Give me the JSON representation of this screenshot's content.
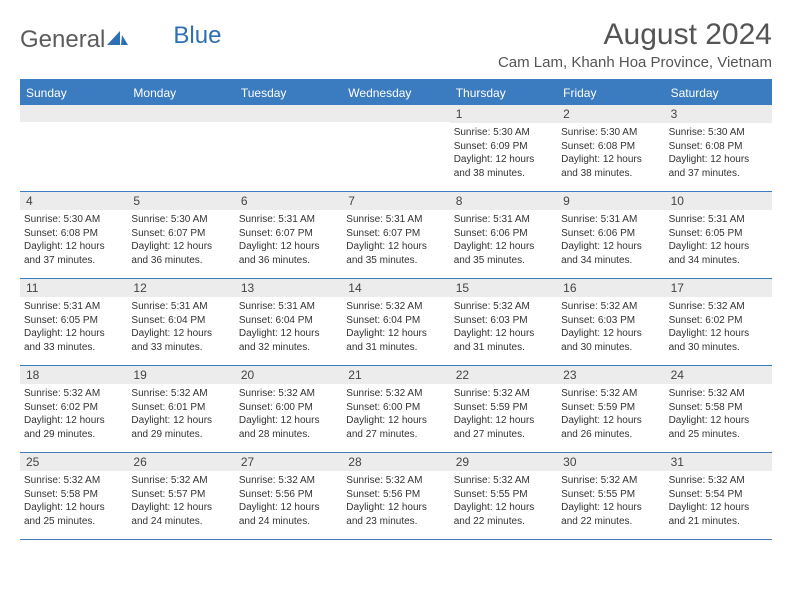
{
  "logo": {
    "text1": "General",
    "text2": "Blue"
  },
  "title": "August 2024",
  "location": "Cam Lam, Khanh Hoa Province, Vietnam",
  "colors": {
    "header_bg": "#3b7bbf",
    "header_text": "#ffffff",
    "daynum_bg": "#ececec",
    "text": "#333333",
    "title_text": "#555555",
    "logo_gray": "#5c5c5c",
    "logo_blue": "#2e6fb5"
  },
  "day_names": [
    "Sunday",
    "Monday",
    "Tuesday",
    "Wednesday",
    "Thursday",
    "Friday",
    "Saturday"
  ],
  "weeks": [
    [
      {
        "empty": true
      },
      {
        "empty": true
      },
      {
        "empty": true
      },
      {
        "empty": true
      },
      {
        "n": "1",
        "sr": "Sunrise: 5:30 AM",
        "ss": "Sunset: 6:09 PM",
        "dl": "Daylight: 12 hours and 38 minutes."
      },
      {
        "n": "2",
        "sr": "Sunrise: 5:30 AM",
        "ss": "Sunset: 6:08 PM",
        "dl": "Daylight: 12 hours and 38 minutes."
      },
      {
        "n": "3",
        "sr": "Sunrise: 5:30 AM",
        "ss": "Sunset: 6:08 PM",
        "dl": "Daylight: 12 hours and 37 minutes."
      }
    ],
    [
      {
        "n": "4",
        "sr": "Sunrise: 5:30 AM",
        "ss": "Sunset: 6:08 PM",
        "dl": "Daylight: 12 hours and 37 minutes."
      },
      {
        "n": "5",
        "sr": "Sunrise: 5:30 AM",
        "ss": "Sunset: 6:07 PM",
        "dl": "Daylight: 12 hours and 36 minutes."
      },
      {
        "n": "6",
        "sr": "Sunrise: 5:31 AM",
        "ss": "Sunset: 6:07 PM",
        "dl": "Daylight: 12 hours and 36 minutes."
      },
      {
        "n": "7",
        "sr": "Sunrise: 5:31 AM",
        "ss": "Sunset: 6:07 PM",
        "dl": "Daylight: 12 hours and 35 minutes."
      },
      {
        "n": "8",
        "sr": "Sunrise: 5:31 AM",
        "ss": "Sunset: 6:06 PM",
        "dl": "Daylight: 12 hours and 35 minutes."
      },
      {
        "n": "9",
        "sr": "Sunrise: 5:31 AM",
        "ss": "Sunset: 6:06 PM",
        "dl": "Daylight: 12 hours and 34 minutes."
      },
      {
        "n": "10",
        "sr": "Sunrise: 5:31 AM",
        "ss": "Sunset: 6:05 PM",
        "dl": "Daylight: 12 hours and 34 minutes."
      }
    ],
    [
      {
        "n": "11",
        "sr": "Sunrise: 5:31 AM",
        "ss": "Sunset: 6:05 PM",
        "dl": "Daylight: 12 hours and 33 minutes."
      },
      {
        "n": "12",
        "sr": "Sunrise: 5:31 AM",
        "ss": "Sunset: 6:04 PM",
        "dl": "Daylight: 12 hours and 33 minutes."
      },
      {
        "n": "13",
        "sr": "Sunrise: 5:31 AM",
        "ss": "Sunset: 6:04 PM",
        "dl": "Daylight: 12 hours and 32 minutes."
      },
      {
        "n": "14",
        "sr": "Sunrise: 5:32 AM",
        "ss": "Sunset: 6:04 PM",
        "dl": "Daylight: 12 hours and 31 minutes."
      },
      {
        "n": "15",
        "sr": "Sunrise: 5:32 AM",
        "ss": "Sunset: 6:03 PM",
        "dl": "Daylight: 12 hours and 31 minutes."
      },
      {
        "n": "16",
        "sr": "Sunrise: 5:32 AM",
        "ss": "Sunset: 6:03 PM",
        "dl": "Daylight: 12 hours and 30 minutes."
      },
      {
        "n": "17",
        "sr": "Sunrise: 5:32 AM",
        "ss": "Sunset: 6:02 PM",
        "dl": "Daylight: 12 hours and 30 minutes."
      }
    ],
    [
      {
        "n": "18",
        "sr": "Sunrise: 5:32 AM",
        "ss": "Sunset: 6:02 PM",
        "dl": "Daylight: 12 hours and 29 minutes."
      },
      {
        "n": "19",
        "sr": "Sunrise: 5:32 AM",
        "ss": "Sunset: 6:01 PM",
        "dl": "Daylight: 12 hours and 29 minutes."
      },
      {
        "n": "20",
        "sr": "Sunrise: 5:32 AM",
        "ss": "Sunset: 6:00 PM",
        "dl": "Daylight: 12 hours and 28 minutes."
      },
      {
        "n": "21",
        "sr": "Sunrise: 5:32 AM",
        "ss": "Sunset: 6:00 PM",
        "dl": "Daylight: 12 hours and 27 minutes."
      },
      {
        "n": "22",
        "sr": "Sunrise: 5:32 AM",
        "ss": "Sunset: 5:59 PM",
        "dl": "Daylight: 12 hours and 27 minutes."
      },
      {
        "n": "23",
        "sr": "Sunrise: 5:32 AM",
        "ss": "Sunset: 5:59 PM",
        "dl": "Daylight: 12 hours and 26 minutes."
      },
      {
        "n": "24",
        "sr": "Sunrise: 5:32 AM",
        "ss": "Sunset: 5:58 PM",
        "dl": "Daylight: 12 hours and 25 minutes."
      }
    ],
    [
      {
        "n": "25",
        "sr": "Sunrise: 5:32 AM",
        "ss": "Sunset: 5:58 PM",
        "dl": "Daylight: 12 hours and 25 minutes."
      },
      {
        "n": "26",
        "sr": "Sunrise: 5:32 AM",
        "ss": "Sunset: 5:57 PM",
        "dl": "Daylight: 12 hours and 24 minutes."
      },
      {
        "n": "27",
        "sr": "Sunrise: 5:32 AM",
        "ss": "Sunset: 5:56 PM",
        "dl": "Daylight: 12 hours and 24 minutes."
      },
      {
        "n": "28",
        "sr": "Sunrise: 5:32 AM",
        "ss": "Sunset: 5:56 PM",
        "dl": "Daylight: 12 hours and 23 minutes."
      },
      {
        "n": "29",
        "sr": "Sunrise: 5:32 AM",
        "ss": "Sunset: 5:55 PM",
        "dl": "Daylight: 12 hours and 22 minutes."
      },
      {
        "n": "30",
        "sr": "Sunrise: 5:32 AM",
        "ss": "Sunset: 5:55 PM",
        "dl": "Daylight: 12 hours and 22 minutes."
      },
      {
        "n": "31",
        "sr": "Sunrise: 5:32 AM",
        "ss": "Sunset: 5:54 PM",
        "dl": "Daylight: 12 hours and 21 minutes."
      }
    ]
  ]
}
